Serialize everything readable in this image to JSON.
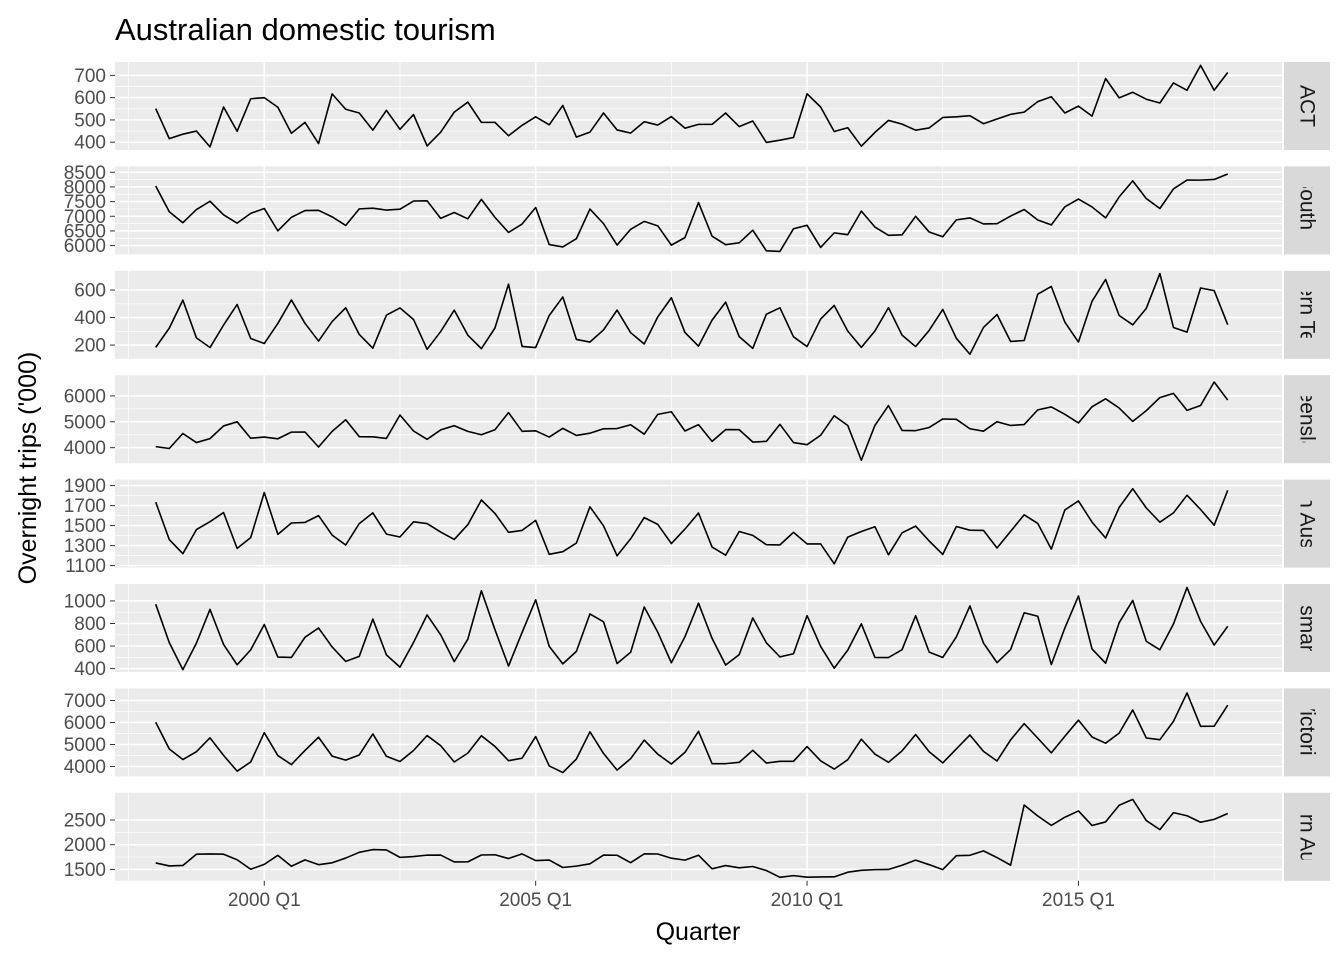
{
  "chart_data": {
    "type": "line",
    "title": "Australian domestic tourism",
    "xlabel": "Quarter",
    "ylabel": "Overnight trips ('000)",
    "x_range": [
      1997.25,
      2018.75
    ],
    "x_ticks": [
      {
        "value": 2000.0,
        "label": "2000 Q1"
      },
      {
        "value": 2005.0,
        "label": "2005 Q1"
      },
      {
        "value": 2010.0,
        "label": "2010 Q1"
      },
      {
        "value": 2015.0,
        "label": "2015 Q1"
      }
    ],
    "x_start": "1998 Q1",
    "x_end": "2017 Q4",
    "grid": true,
    "colors": {
      "panel": "#ebebeb",
      "strip": "#d9d9d9",
      "grid": "#ffffff",
      "line": "#000000"
    },
    "panels": [
      {
        "label": "ACT",
        "ylim": [
          365,
          760
        ],
        "yticks": [
          400,
          500,
          600,
          700
        ],
        "values": [
          551,
          416,
          436,
          450,
          379,
          558,
          449,
          595,
          600,
          557,
          440,
          489,
          394,
          617,
          548,
          531,
          454,
          543,
          458,
          524,
          383,
          445,
          535,
          580,
          489,
          489,
          429,
          476,
          514,
          478,
          565,
          423,
          445,
          531,
          455,
          441,
          492,
          477,
          515,
          463,
          480,
          480,
          531,
          470,
          495,
          399,
          409,
          421,
          617,
          558,
          448,
          465,
          382,
          444,
          498,
          481,
          454,
          464,
          511,
          514,
          519,
          483,
          504,
          525,
          535,
          582,
          604,
          531,
          562,
          517,
          686,
          599,
          624,
          593,
          576,
          666,
          633,
          745,
          633,
          713
        ]
      },
      {
        "label": "New South Wales",
        "ylim": [
          5700,
          8700
        ],
        "yticks": [
          6000,
          6500,
          7000,
          7500,
          8000,
          8500
        ],
        "values": [
          8031,
          7152,
          6781,
          7228,
          7512,
          7050,
          6765,
          7099,
          7266,
          6502,
          6965,
          7194,
          7203,
          6980,
          6687,
          7252,
          7275,
          7210,
          7241,
          7520,
          7527,
          6929,
          7128,
          6914,
          7576,
          6963,
          6448,
          6735,
          7299,
          6036,
          5955,
          6234,
          7246,
          6749,
          6018,
          6556,
          6825,
          6674,
          6016,
          6272,
          7467,
          6322,
          6032,
          6095,
          6526,
          5821,
          5801,
          6574,
          6692,
          5938,
          6434,
          6373,
          7175,
          6633,
          6350,
          6366,
          6998,
          6462,
          6302,
          6877,
          6944,
          6738,
          6748,
          7008,
          7230,
          6873,
          6705,
          7323,
          7587,
          7318,
          6944,
          7660,
          8207,
          7603,
          7265,
          7933,
          8234,
          8232,
          8255,
          8441
        ]
      },
      {
        "label": "Northern Territory",
        "ylim": [
          100,
          740
        ],
        "yticks": [
          200,
          400,
          600
        ],
        "values": [
          183,
          323,
          527,
          252,
          182,
          345,
          495,
          248,
          211,
          357,
          528,
          358,
          229,
          371,
          471,
          277,
          177,
          417,
          470,
          386,
          169,
          298,
          454,
          272,
          174,
          324,
          643,
          190,
          182,
          415,
          550,
          241,
          222,
          310,
          454,
          290,
          208,
          405,
          544,
          292,
          192,
          381,
          512,
          261,
          176,
          424,
          471,
          260,
          189,
          389,
          488,
          301,
          183,
          302,
          472,
          272,
          189,
          307,
          459,
          249,
          133,
          328,
          422,
          226,
          233,
          570,
          626,
          366,
          222,
          518,
          677,
          415,
          347,
          467,
          720,
          328,
          294,
          615,
          596,
          348
        ]
      },
      {
        "label": "Queensland",
        "ylim": [
          3400,
          6800
        ],
        "yticks": [
          4000,
          5000,
          6000
        ],
        "values": [
          4041,
          3968,
          4547,
          4198,
          4349,
          4840,
          4999,
          4365,
          4410,
          4344,
          4601,
          4605,
          4025,
          4630,
          5078,
          4425,
          4418,
          4357,
          5263,
          4644,
          4324,
          4686,
          4849,
          4630,
          4500,
          4692,
          5354,
          4633,
          4651,
          4410,
          4746,
          4474,
          4559,
          4729,
          4739,
          4886,
          4520,
          5287,
          5387,
          4645,
          4889,
          4244,
          4698,
          4693,
          4218,
          4244,
          4902,
          4197,
          4116,
          4479,
          5234,
          4857,
          3516,
          4861,
          5626,
          4667,
          4658,
          4780,
          5108,
          5095,
          4731,
          4636,
          5003,
          4858,
          4894,
          5460,
          5573,
          5289,
          4955,
          5581,
          5888,
          5532,
          5014,
          5431,
          5935,
          6097,
          5443,
          5629,
          6536,
          5839
        ]
      },
      {
        "label": "South Australia",
        "ylim": [
          1080,
          1960
        ],
        "yticks": [
          1100,
          1300,
          1500,
          1700,
          1900
        ],
        "values": [
          1735,
          1360,
          1219,
          1460,
          1539,
          1630,
          1272,
          1380,
          1831,
          1412,
          1526,
          1532,
          1600,
          1405,
          1306,
          1520,
          1627,
          1415,
          1386,
          1538,
          1520,
          1435,
          1362,
          1509,
          1756,
          1622,
          1433,
          1452,
          1552,
          1213,
          1239,
          1325,
          1688,
          1498,
          1198,
          1368,
          1580,
          1512,
          1320,
          1465,
          1626,
          1285,
          1204,
          1441,
          1402,
          1309,
          1307,
          1432,
          1317,
          1317,
          1118,
          1385,
          1441,
          1489,
          1208,
          1428,
          1495,
          1346,
          1212,
          1491,
          1454,
          1452,
          1276,
          1442,
          1608,
          1522,
          1265,
          1657,
          1747,
          1535,
          1376,
          1681,
          1869,
          1676,
          1534,
          1627,
          1804,
          1661,
          1504,
          1853
        ]
      },
      {
        "label": "Tasmania",
        "ylim": [
          370,
          1150
        ],
        "yticks": [
          400,
          600,
          800,
          1000
        ],
        "values": [
          971,
          630,
          391,
          626,
          925,
          614,
          434,
          566,
          791,
          502,
          499,
          678,
          760,
          592,
          464,
          509,
          839,
          522,
          413,
          632,
          876,
          700,
          462,
          661,
          1090,
          745,
          423,
          721,
          1010,
          597,
          442,
          553,
          885,
          815,
          445,
          545,
          946,
          722,
          452,
          682,
          980,
          668,
          432,
          524,
          849,
          629,
          504,
          532,
          870,
          597,
          404,
          564,
          797,
          499,
          498,
          568,
          869,
          546,
          499,
          681,
          956,
          627,
          453,
          569,
          895,
          864,
          436,
          761,
          1044,
          574,
          448,
          807,
          1004,
          642,
          567,
          795,
          1119,
          819,
          609,
          775
        ]
      },
      {
        "label": "Victoria",
        "ylim": [
          3550,
          7550
        ],
        "yticks": [
          4000,
          5000,
          6000,
          7000
        ],
        "values": [
          6010,
          4795,
          4317,
          4675,
          5304,
          4507,
          3788,
          4205,
          5536,
          4496,
          4089,
          4731,
          5330,
          4471,
          4290,
          4525,
          5481,
          4463,
          4228,
          4728,
          5407,
          4950,
          4205,
          4608,
          5398,
          4912,
          4263,
          4379,
          5360,
          4026,
          3727,
          4339,
          5577,
          4594,
          3837,
          4356,
          5200,
          4560,
          4113,
          4642,
          5600,
          4130,
          4130,
          4189,
          4737,
          4157,
          4237,
          4237,
          4905,
          4259,
          3882,
          4310,
          5239,
          4565,
          4191,
          4710,
          5455,
          4672,
          4164,
          4797,
          5433,
          4688,
          4251,
          5209,
          5948,
          5289,
          4620,
          5373,
          6106,
          5339,
          5060,
          5516,
          6571,
          5296,
          5218,
          6052,
          7343,
          5828,
          5832,
          6789
        ]
      },
      {
        "label": "Western Australia",
        "ylim": [
          1270,
          3050
        ],
        "yticks": [
          1500,
          2000,
          2500
        ],
        "values": [
          1631,
          1571,
          1580,
          1808,
          1813,
          1808,
          1696,
          1504,
          1602,
          1785,
          1564,
          1693,
          1596,
          1634,
          1730,
          1846,
          1901,
          1895,
          1744,
          1760,
          1789,
          1791,
          1652,
          1653,
          1792,
          1797,
          1720,
          1814,
          1679,
          1689,
          1539,
          1567,
          1613,
          1790,
          1787,
          1636,
          1815,
          1812,
          1727,
          1688,
          1788,
          1513,
          1578,
          1533,
          1559,
          1478,
          1340,
          1375,
          1343,
          1349,
          1350,
          1444,
          1482,
          1496,
          1499,
          1585,
          1688,
          1596,
          1497,
          1777,
          1786,
          1875,
          1739,
          1587,
          2803,
          2582,
          2391,
          2556,
          2683,
          2389,
          2461,
          2799,
          2916,
          2489,
          2305,
          2649,
          2586,
          2455,
          2513,
          2632
        ]
      }
    ]
  }
}
